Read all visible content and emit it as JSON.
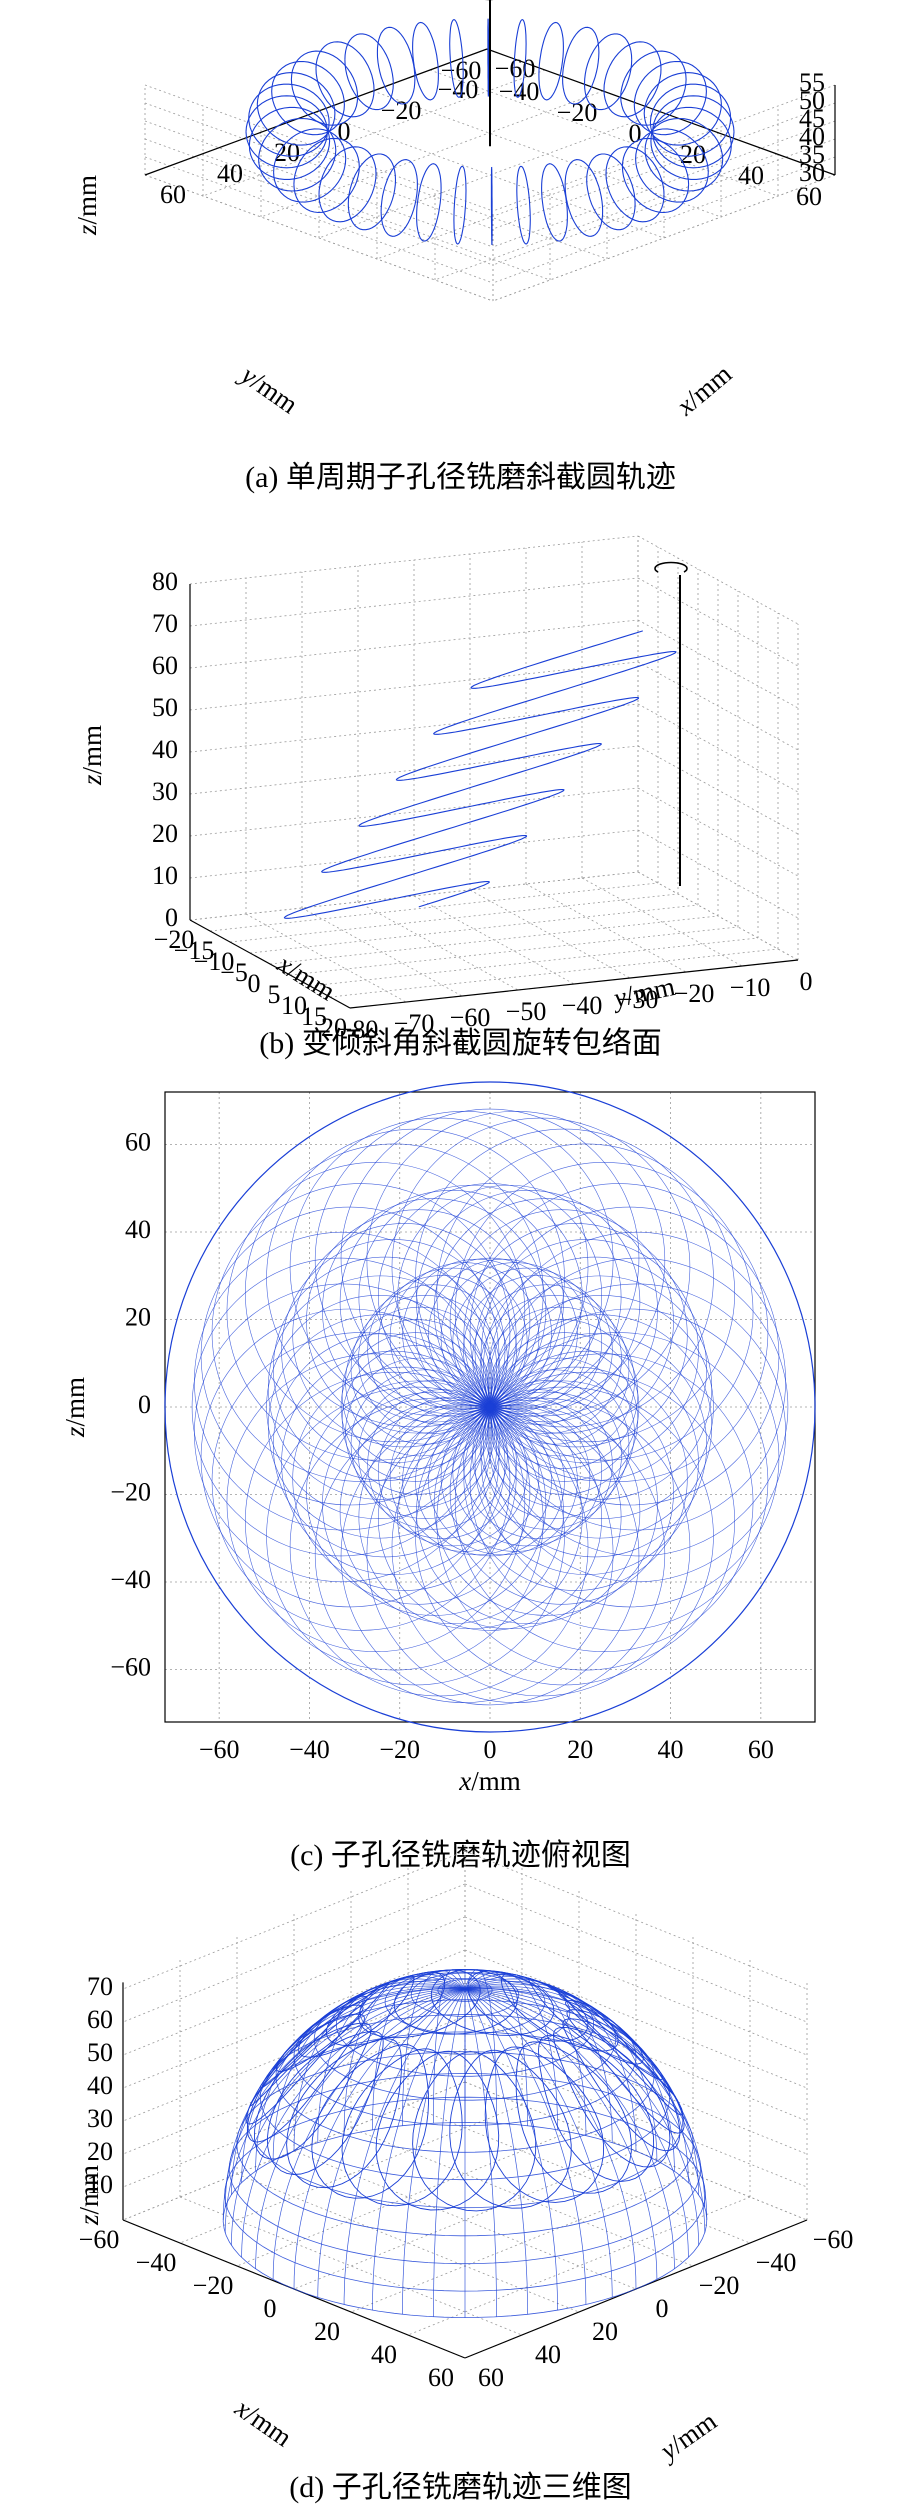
{
  "chart_data": [
    {
      "type": "line",
      "projection": "3d",
      "caption": "(a) 单周期子孔径铣磨斜截圆轨迹",
      "xlabel": "x/mm",
      "ylabel": "y/mm",
      "zlabel": "z/mm",
      "xticks": [
        "−60",
        "−40",
        "−20",
        "0",
        "20",
        "40",
        "60"
      ],
      "yticks": [
        "−60",
        "−40",
        "−20",
        "0",
        "20",
        "40",
        "60"
      ],
      "zticks": [
        "30",
        "35",
        "40",
        "45",
        "50",
        "55"
      ],
      "xlim": [
        -60,
        60
      ],
      "ylim": [
        -60,
        60
      ],
      "zlim": [
        30,
        55
      ],
      "description_values": {
        "inner_radius": 40,
        "outer_radius": 60,
        "z_top": 52,
        "z_bottom": 32,
        "circles": 40
      },
      "color": "#1a3fd6",
      "grid": true
    },
    {
      "type": "line",
      "projection": "3d",
      "caption": "(b) 变倾斜角斜截圆旋转包络面",
      "xlabel": "x/mm",
      "ylabel": "y/mm",
      "zlabel": "z/mm",
      "xticks": [
        "−20",
        "−15",
        "−10",
        "−5",
        "0",
        "5",
        "10",
        "15",
        "20"
      ],
      "yticks": [
        "−80",
        "−70",
        "−60",
        "−50",
        "−40",
        "−30",
        "−20",
        "−10",
        "0"
      ],
      "zticks": [
        "0",
        "10",
        "20",
        "30",
        "40",
        "50",
        "60",
        "70",
        "80"
      ],
      "xlim": [
        -20,
        20
      ],
      "ylim": [
        -80,
        0
      ],
      "zlim": [
        0,
        80
      ],
      "color": "#1a3fd6",
      "grid": true
    },
    {
      "type": "line",
      "projection": "2d",
      "caption": "(c) 子孔径铣磨轨迹俯视图",
      "xlabel": "x/mm",
      "ylabel": "z/mm",
      "xticks": [
        "−60",
        "−40",
        "−20",
        "0",
        "20",
        "40",
        "60"
      ],
      "yticks": [
        "−60",
        "−40",
        "−20",
        "0",
        "20",
        "40",
        "60"
      ],
      "xlim": [
        -72,
        72
      ],
      "ylim": [
        -72,
        72
      ],
      "color": "#1a3fd6",
      "grid": true
    },
    {
      "type": "line",
      "projection": "3d",
      "caption": "(d) 子孔径铣磨轨迹三维图",
      "xlabel": "x/mm",
      "ylabel": "y/mm",
      "zlabel": "z/mm",
      "xticks": [
        "60",
        "40",
        "20",
        "0",
        "−20",
        "−40",
        "−60"
      ],
      "yticks": [
        "−60",
        "−40",
        "−20",
        "0",
        "20",
        "40",
        "60"
      ],
      "zticks": [
        "10",
        "20",
        "30",
        "40",
        "50",
        "60",
        "70"
      ],
      "xlim": [
        -60,
        60
      ],
      "ylim": [
        -60,
        60
      ],
      "zlim": [
        0,
        72
      ],
      "color": "#1a3fd6",
      "grid": true
    }
  ]
}
